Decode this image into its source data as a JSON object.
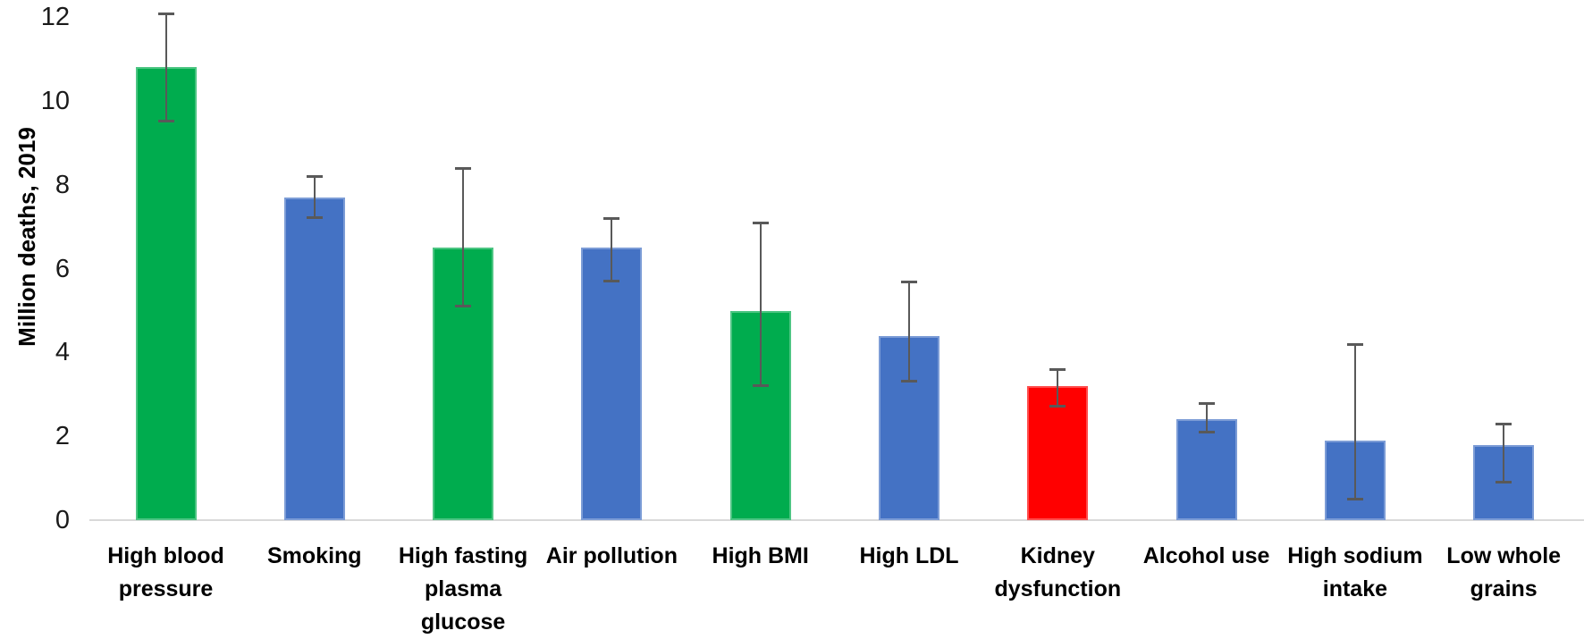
{
  "chart_data": {
    "type": "bar",
    "title": "",
    "subtitle": "",
    "xlabel": "",
    "ylabel": "Million deaths, 2019",
    "ylim": [
      0,
      12
    ],
    "yticks": [
      0,
      2,
      4,
      6,
      8,
      10,
      12
    ],
    "grid": false,
    "legend": false,
    "categories": [
      "High blood pressure",
      "Smoking",
      "High fasting plasma glucose",
      "Air pollution",
      "High BMI",
      "High LDL",
      "Kidney dysfunction",
      "Alcohol use",
      "High sodium intake",
      "Low whole grains"
    ],
    "category_label_lines": [
      [
        "High blood",
        "pressure"
      ],
      [
        "Smoking"
      ],
      [
        "High fasting",
        "plasma",
        "glucose"
      ],
      [
        "Air pollution"
      ],
      [
        "High BMI"
      ],
      [
        "High LDL"
      ],
      [
        "Kidney",
        "dysfunction"
      ],
      [
        "Alcohol use"
      ],
      [
        "High sodium",
        "intake"
      ],
      [
        "Low whole",
        "grains"
      ]
    ],
    "series": [
      {
        "name": "Million deaths, 2019",
        "values": [
          10.8,
          7.7,
          6.5,
          6.5,
          5.0,
          4.4,
          3.2,
          2.4,
          1.9,
          1.8
        ]
      }
    ],
    "error_bars": {
      "low": [
        9.5,
        7.2,
        5.1,
        5.7,
        3.2,
        3.3,
        2.7,
        2.1,
        0.5,
        0.9
      ],
      "high": [
        12.1,
        8.2,
        8.4,
        7.2,
        7.1,
        5.7,
        3.6,
        2.8,
        4.2,
        2.3
      ]
    },
    "bar_color_names": [
      "green",
      "blue",
      "green",
      "blue",
      "green",
      "blue",
      "red",
      "blue",
      "blue",
      "blue"
    ],
    "colors": {
      "green": "#00AC4E",
      "blue": "#4472C4",
      "red": "#FF0000",
      "error_bar": "#595959",
      "axis_line": "#D9D9D9",
      "text": "#000000"
    }
  }
}
